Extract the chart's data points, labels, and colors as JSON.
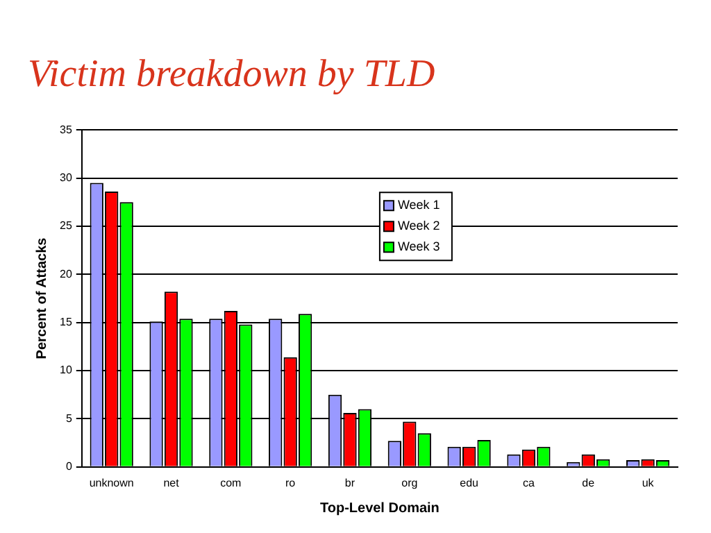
{
  "chart_data": {
    "type": "bar",
    "title": "Victim breakdown by TLD",
    "xlabel": "Top-Level Domain",
    "ylabel": "Percent of Attacks",
    "categories": [
      "unknown",
      "net",
      "com",
      "ro",
      "br",
      "org",
      "edu",
      "ca",
      "de",
      "uk"
    ],
    "series": [
      {
        "name": "Week 1",
        "color": "#9999ff",
        "values": [
          29.5,
          15.1,
          15.4,
          15.4,
          7.5,
          2.7,
          2.1,
          1.3,
          0.5,
          0.7
        ]
      },
      {
        "name": "Week 2",
        "color": "#ff0000",
        "values": [
          28.6,
          18.2,
          16.2,
          11.4,
          5.6,
          4.7,
          2.1,
          1.8,
          1.3,
          0.8
        ]
      },
      {
        "name": "Week 3",
        "color": "#00ff00",
        "values": [
          27.5,
          15.4,
          14.8,
          15.9,
          6.0,
          3.5,
          2.8,
          2.1,
          0.8,
          0.7
        ]
      }
    ],
    "ylim": [
      0,
      35
    ],
    "yticks": [
      0,
      5,
      10,
      15,
      20,
      25,
      30,
      35
    ],
    "grid": "y",
    "legend": "top"
  }
}
